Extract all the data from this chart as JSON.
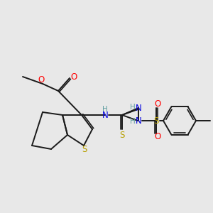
{
  "background_color": "#e8e8e8",
  "bond_color": "#1a1a1a",
  "S_color": "#b8a000",
  "O_color": "#ff0000",
  "N_color": "#0000e0",
  "H_color": "#5f9ea0",
  "figsize": [
    3.0,
    3.0
  ],
  "dpi": 100,
  "xlim": [
    0,
    300
  ],
  "ylim": [
    300,
    0
  ]
}
